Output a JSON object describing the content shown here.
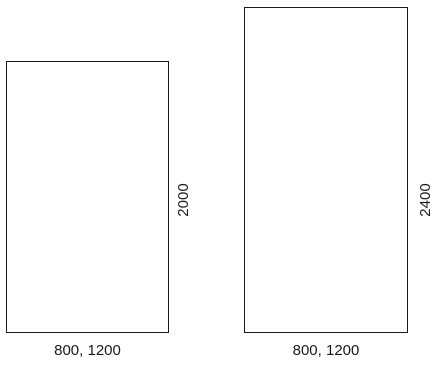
{
  "panels": [
    {
      "width_label": "800, 1200",
      "height_label": "2000"
    },
    {
      "width_label": "800, 1200",
      "height_label": "2400"
    }
  ]
}
